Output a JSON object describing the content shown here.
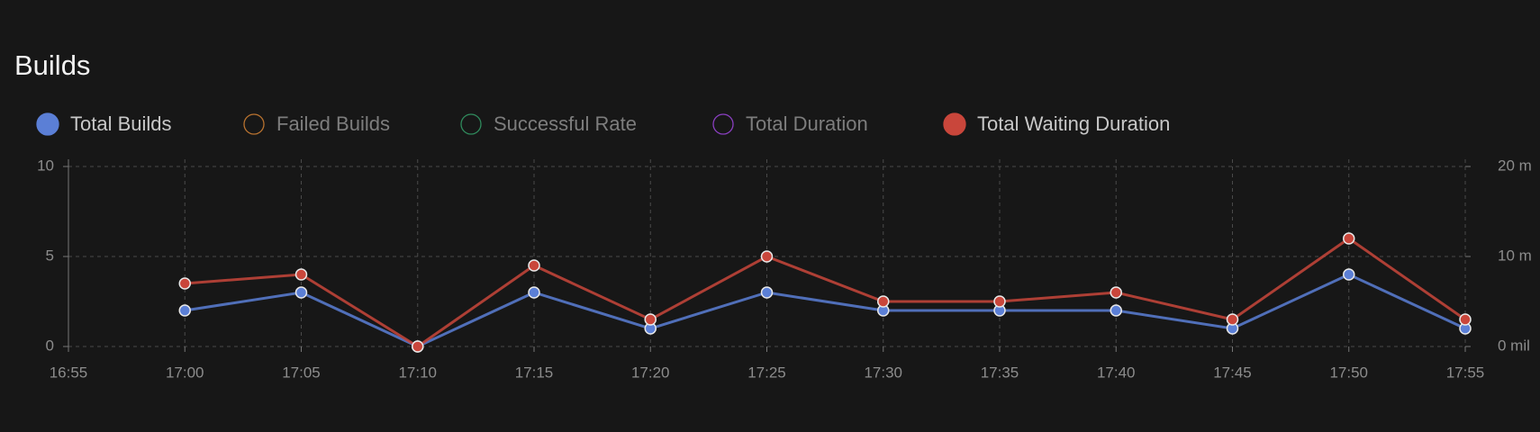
{
  "chart_data": {
    "type": "line",
    "title": "Builds",
    "categories": [
      "16:55",
      "17:00",
      "17:05",
      "17:10",
      "17:15",
      "17:20",
      "17:25",
      "17:30",
      "17:35",
      "17:40",
      "17:45",
      "17:50",
      "17:55"
    ],
    "series": [
      {
        "name": "Total Builds",
        "color": "#5b7fd6",
        "values": [
          null,
          2,
          3,
          0,
          3,
          1,
          3,
          2,
          2,
          2,
          1,
          4,
          1
        ]
      },
      {
        "name": "Failed Builds",
        "color": "#b8722f",
        "hidden": true,
        "values": [
          null,
          null,
          null,
          null,
          null,
          null,
          null,
          null,
          null,
          null,
          null,
          null,
          null
        ]
      },
      {
        "name": "Successful Rate",
        "color": "#2f8a5c",
        "hidden": true,
        "values": [
          null,
          null,
          null,
          null,
          null,
          null,
          null,
          null,
          null,
          null,
          null,
          null,
          null
        ]
      },
      {
        "name": "Total Duration",
        "color": "#8a3fc0",
        "hidden": true,
        "values": [
          null,
          null,
          null,
          null,
          null,
          null,
          null,
          null,
          null,
          null,
          null,
          null,
          null
        ]
      },
      {
        "name": "Total Waiting Duration",
        "color": "#c9463b",
        "axis": "y2",
        "values": [
          null,
          7,
          8,
          0,
          9,
          3,
          10,
          5,
          5,
          6,
          3,
          12,
          3
        ]
      }
    ],
    "ylim": [
      0,
      10
    ],
    "yticks": [
      0,
      5,
      10
    ],
    "y2lim": [
      0,
      20
    ],
    "y2ticks": [
      {
        "value": 0,
        "label": "0 mil"
      },
      {
        "value": 10,
        "label": "10 m"
      },
      {
        "value": 20,
        "label": "20 m"
      }
    ],
    "grid": true
  }
}
